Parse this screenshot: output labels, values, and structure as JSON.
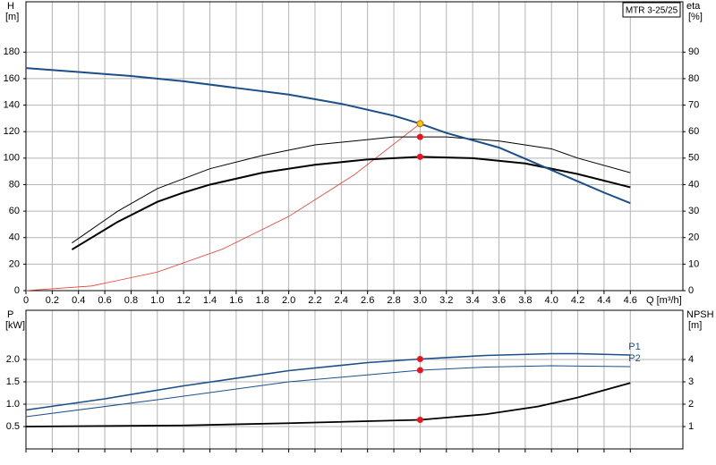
{
  "chart_data": [
    {
      "type": "line",
      "xlabel": "Q [m³/h]",
      "ylabel": "H",
      "ylabel_unit": "[m]",
      "y2label": "eta",
      "y2label_unit": "[%]",
      "title": "MTR 3-25/25",
      "grid": true,
      "xtick_labels": true,
      "xlim": [
        0,
        5
      ],
      "ylim": [
        0,
        218
      ],
      "y2lim": [
        0,
        109
      ],
      "xticks": [
        0,
        0.2,
        0.4,
        0.6,
        0.8,
        {
          "value": 1,
          "label": "1.0"
        },
        1.2,
        1.4,
        1.6,
        1.8,
        {
          "value": 2,
          "label": "2.0"
        },
        2.2,
        2.4,
        2.6,
        2.8,
        {
          "value": 3,
          "label": "3.0"
        },
        3.2,
        3.4,
        3.6,
        3.8,
        {
          "value": 4,
          "label": "4.0"
        },
        4.2,
        4.4,
        4.6
      ],
      "yticks": [
        0,
        20,
        40,
        60,
        80,
        100,
        120,
        140,
        160,
        180
      ],
      "y2ticks": [
        0,
        10,
        20,
        30,
        40,
        50,
        60,
        70,
        80,
        90
      ],
      "series": [
        {
          "color": "#e8392e",
          "width": 0.8,
          "x": [
            0,
            0.5,
            1.0,
            1.5,
            2.0,
            2.5,
            3.0
          ],
          "values": [
            0,
            3.5,
            14,
            31.5,
            56,
            87.5,
            126
          ]
        },
        {
          "color": "#000000",
          "width": 1,
          "axis": "y2",
          "x": [
            0.35,
            0.7,
            1.0,
            1.4,
            1.8,
            2.2,
            2.6,
            2.8,
            3.2,
            3.6,
            4.0,
            4.2,
            4.6
          ],
          "values": [
            18,
            30,
            38.5,
            46,
            51,
            55,
            57,
            58,
            58,
            56.5,
            53.5,
            50,
            44.5
          ]
        },
        {
          "color": "#000000",
          "width": 2,
          "axis": "y2",
          "x": [
            0.35,
            0.7,
            1.0,
            1.2,
            1.4,
            1.8,
            2.2,
            2.6,
            3.0,
            3.4,
            3.8,
            4.2,
            4.6
          ],
          "values": [
            15.5,
            26,
            33.5,
            37,
            40,
            44.5,
            47.5,
            49.5,
            50.5,
            50,
            48,
            44,
            39
          ]
        },
        {
          "color": "#1b4f8a",
          "width": 2,
          "x": [
            0,
            0.4,
            0.8,
            1.2,
            1.6,
            2.0,
            2.4,
            2.8,
            3.0,
            3.2,
            3.6,
            4.0,
            4.4,
            4.6
          ],
          "values": [
            168,
            165,
            162,
            158,
            153,
            148,
            141,
            132,
            126,
            119,
            108,
            91,
            74,
            66
          ]
        },
        {
          "style": "markers",
          "color": "#e8141e",
          "axis": "y2",
          "x": [
            3,
            3
          ],
          "values": [
            58,
            50.5
          ]
        },
        {
          "style": "markers",
          "color": "#f5c518",
          "x": [
            3
          ],
          "values": [
            126
          ]
        }
      ]
    },
    {
      "type": "line",
      "ylabel": "P",
      "ylabel_unit": "[kW]",
      "y2label": "NPSH",
      "y2label_unit": "[m]",
      "grid": true,
      "xtick_labels": false,
      "xlim": [
        0,
        5
      ],
      "ylim": [
        0,
        3.1
      ],
      "y2lim": [
        0,
        6.2
      ],
      "xticks": [
        0,
        0.2,
        0.4,
        0.6,
        0.8,
        1,
        1.2,
        1.4,
        1.6,
        1.8,
        2,
        2.2,
        2.4,
        2.6,
        2.8,
        3,
        3.2,
        3.4,
        3.6,
        3.8,
        4,
        4.2,
        4.4,
        4.6
      ],
      "yticks": [
        0.5,
        {
          "value": 1,
          "label": "1.0"
        },
        1.5,
        {
          "value": 2,
          "label": "2.0"
        }
      ],
      "y2ticks": [
        1,
        2,
        3,
        4
      ],
      "series": [
        {
          "name": "P1",
          "color": "#1b4f8a",
          "width": 1.6,
          "x": [
            0,
            0.6,
            1.2,
            2.0,
            2.6,
            3.0,
            3.5,
            4.0,
            4.2,
            4.6
          ],
          "values": [
            0.87,
            1.12,
            1.41,
            1.75,
            1.93,
            2.01,
            2.09,
            2.13,
            2.13,
            2.1
          ]
        },
        {
          "name": "P2",
          "color": "#1b4f8a",
          "width": 1,
          "x": [
            0,
            1.0,
            2.0,
            3.0,
            3.5,
            4.0,
            4.6
          ],
          "values": [
            0.72,
            1.1,
            1.5,
            1.76,
            1.83,
            1.86,
            1.84
          ]
        },
        {
          "color": "#000000",
          "width": 1.8,
          "axis": "y2",
          "x": [
            0,
            1.2,
            2.0,
            3.0,
            3.5,
            3.9,
            4.2,
            4.6
          ],
          "values": [
            1.0,
            1.05,
            1.15,
            1.3,
            1.55,
            1.9,
            2.3,
            2.95
          ]
        },
        {
          "style": "markers",
          "color": "#e8141e",
          "x": [
            3,
            3
          ],
          "values": [
            2.01,
            1.76
          ]
        },
        {
          "style": "markers",
          "color": "#e8141e",
          "axis": "y2",
          "x": [
            3
          ],
          "values": [
            1.3
          ]
        }
      ]
    }
  ]
}
